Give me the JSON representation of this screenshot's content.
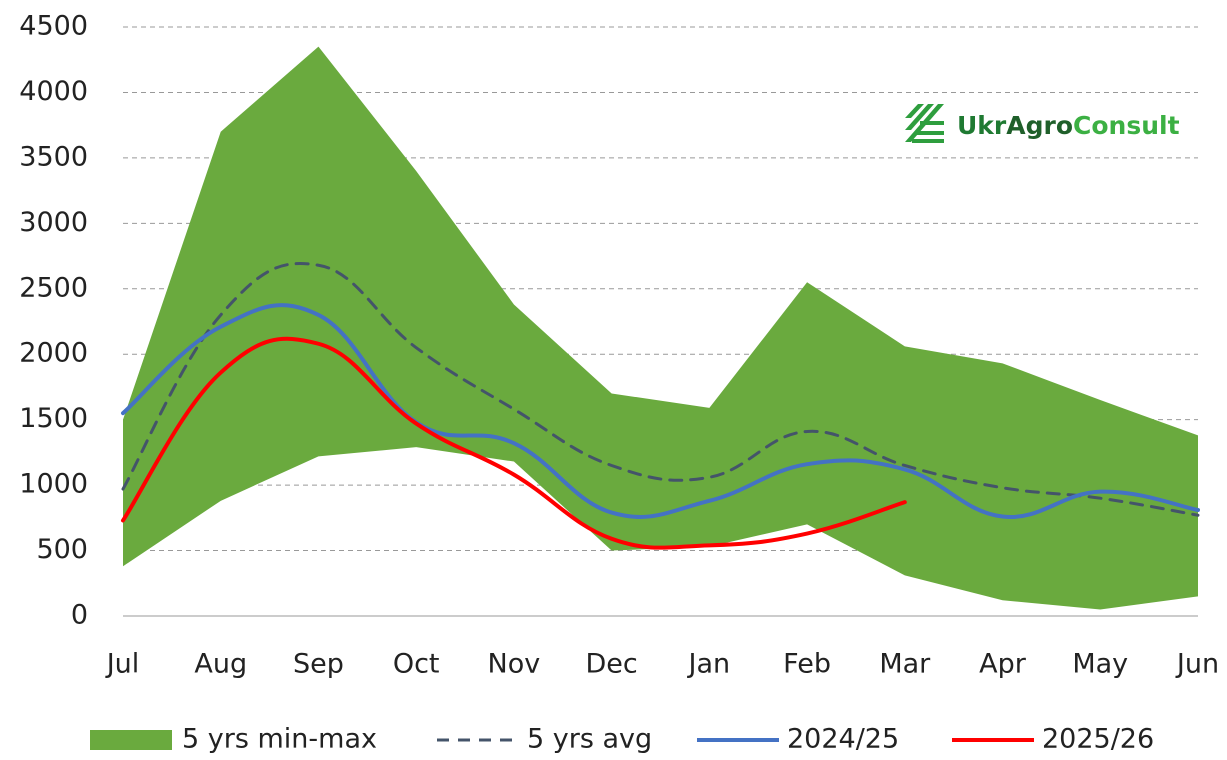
{
  "chart_data": {
    "type": "line",
    "logo": [
      "Ukr",
      "Agro",
      "Consult"
    ],
    "categories": [
      "Jul",
      "Aug",
      "Sep",
      "Oct",
      "Nov",
      "Dec",
      "Jan",
      "Feb",
      "Mar",
      "Apr",
      "May",
      "Jun"
    ],
    "band": {
      "name": "5 yrs min-max",
      "color": "#6aaa3e",
      "min": [
        380,
        880,
        1220,
        1290,
        1180,
        500,
        530,
        700,
        310,
        120,
        50,
        150
      ],
      "max": [
        1500,
        3700,
        4350,
        3400,
        2380,
        1700,
        1590,
        2550,
        2060,
        1930,
        1650,
        1380
      ]
    },
    "series": [
      {
        "name": "5 yrs avg",
        "color": "#44546a",
        "dashed": true,
        "values": [
          970,
          2300,
          2680,
          2050,
          1580,
          1150,
          1060,
          1410,
          1150,
          980,
          900,
          770
        ]
      },
      {
        "name": "2024/25",
        "color": "#4472c4",
        "values": [
          1550,
          2210,
          2300,
          1480,
          1320,
          790,
          880,
          1160,
          1120,
          760,
          950,
          810
        ]
      },
      {
        "name": "2025/26",
        "color": "#ff0000",
        "values": [
          730,
          1860,
          2080,
          1470,
          1080,
          590,
          540,
          630,
          870,
          null,
          null,
          null
        ]
      }
    ],
    "ylim": [
      0,
      4500
    ],
    "yticks": [
      0,
      500,
      1000,
      1500,
      2000,
      2500,
      3000,
      3500,
      4000,
      4500
    ],
    "grid": true,
    "legend": "bottom"
  }
}
